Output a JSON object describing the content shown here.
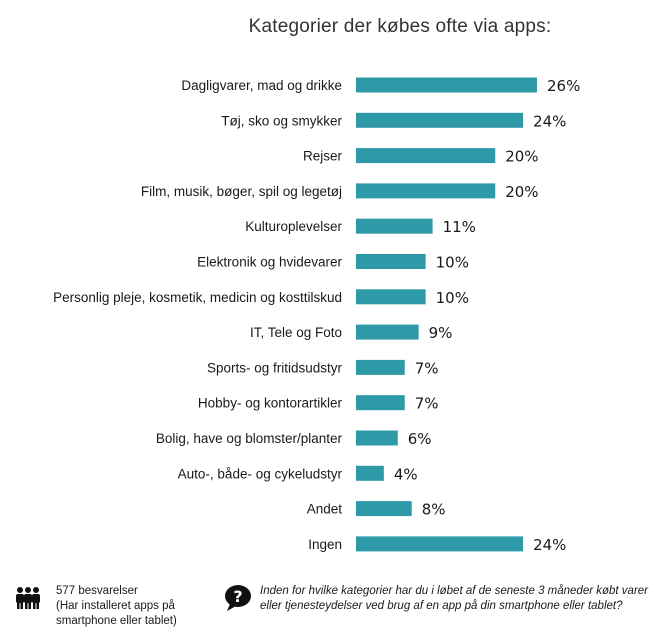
{
  "chart_data": {
    "type": "bar",
    "orientation": "horizontal",
    "title": "Kategorier der købes ofte via apps:",
    "categories": [
      "Dagligvarer, mad og drikke",
      "Tøj, sko og smykker",
      "Rejser",
      "Film, musik, bøger, spil og legetøj",
      "Kulturoplevelser",
      "Elektronik og hvidevarer",
      "Personlig pleje, kosmetik, medicin og kosttilskud",
      "IT, Tele og Foto",
      "Sports- og fritidsudstyr",
      "Hobby- og kontorartikler",
      "Bolig, have og blomster/planter",
      "Auto-, både- og cykeludstyr",
      "Andet",
      "Ingen"
    ],
    "values": [
      26,
      24,
      20,
      20,
      11,
      10,
      10,
      9,
      7,
      7,
      6,
      4,
      8,
      24
    ],
    "value_labels": [
      "26%",
      "24%",
      "20%",
      "20%",
      "11%",
      "10%",
      "10%",
      "9%",
      "7%",
      "7%",
      "6%",
      "4%",
      "8%",
      "24%"
    ],
    "unit": "%",
    "bar_color": "#2e9aa8",
    "grid": false,
    "legend": false
  },
  "footer": {
    "respondents_line1": "577 besvarelser",
    "respondents_line2": "(Har installeret apps på smartphone eller tablet)",
    "question": "Inden for hvilke kategorier har du i løbet af de seneste 3 måneder købt varer eller tjenesteydelser ved brug af en app på din smartphone eller tablet?",
    "people_icon": "people-icon",
    "question_icon": "question-mark-icon"
  }
}
